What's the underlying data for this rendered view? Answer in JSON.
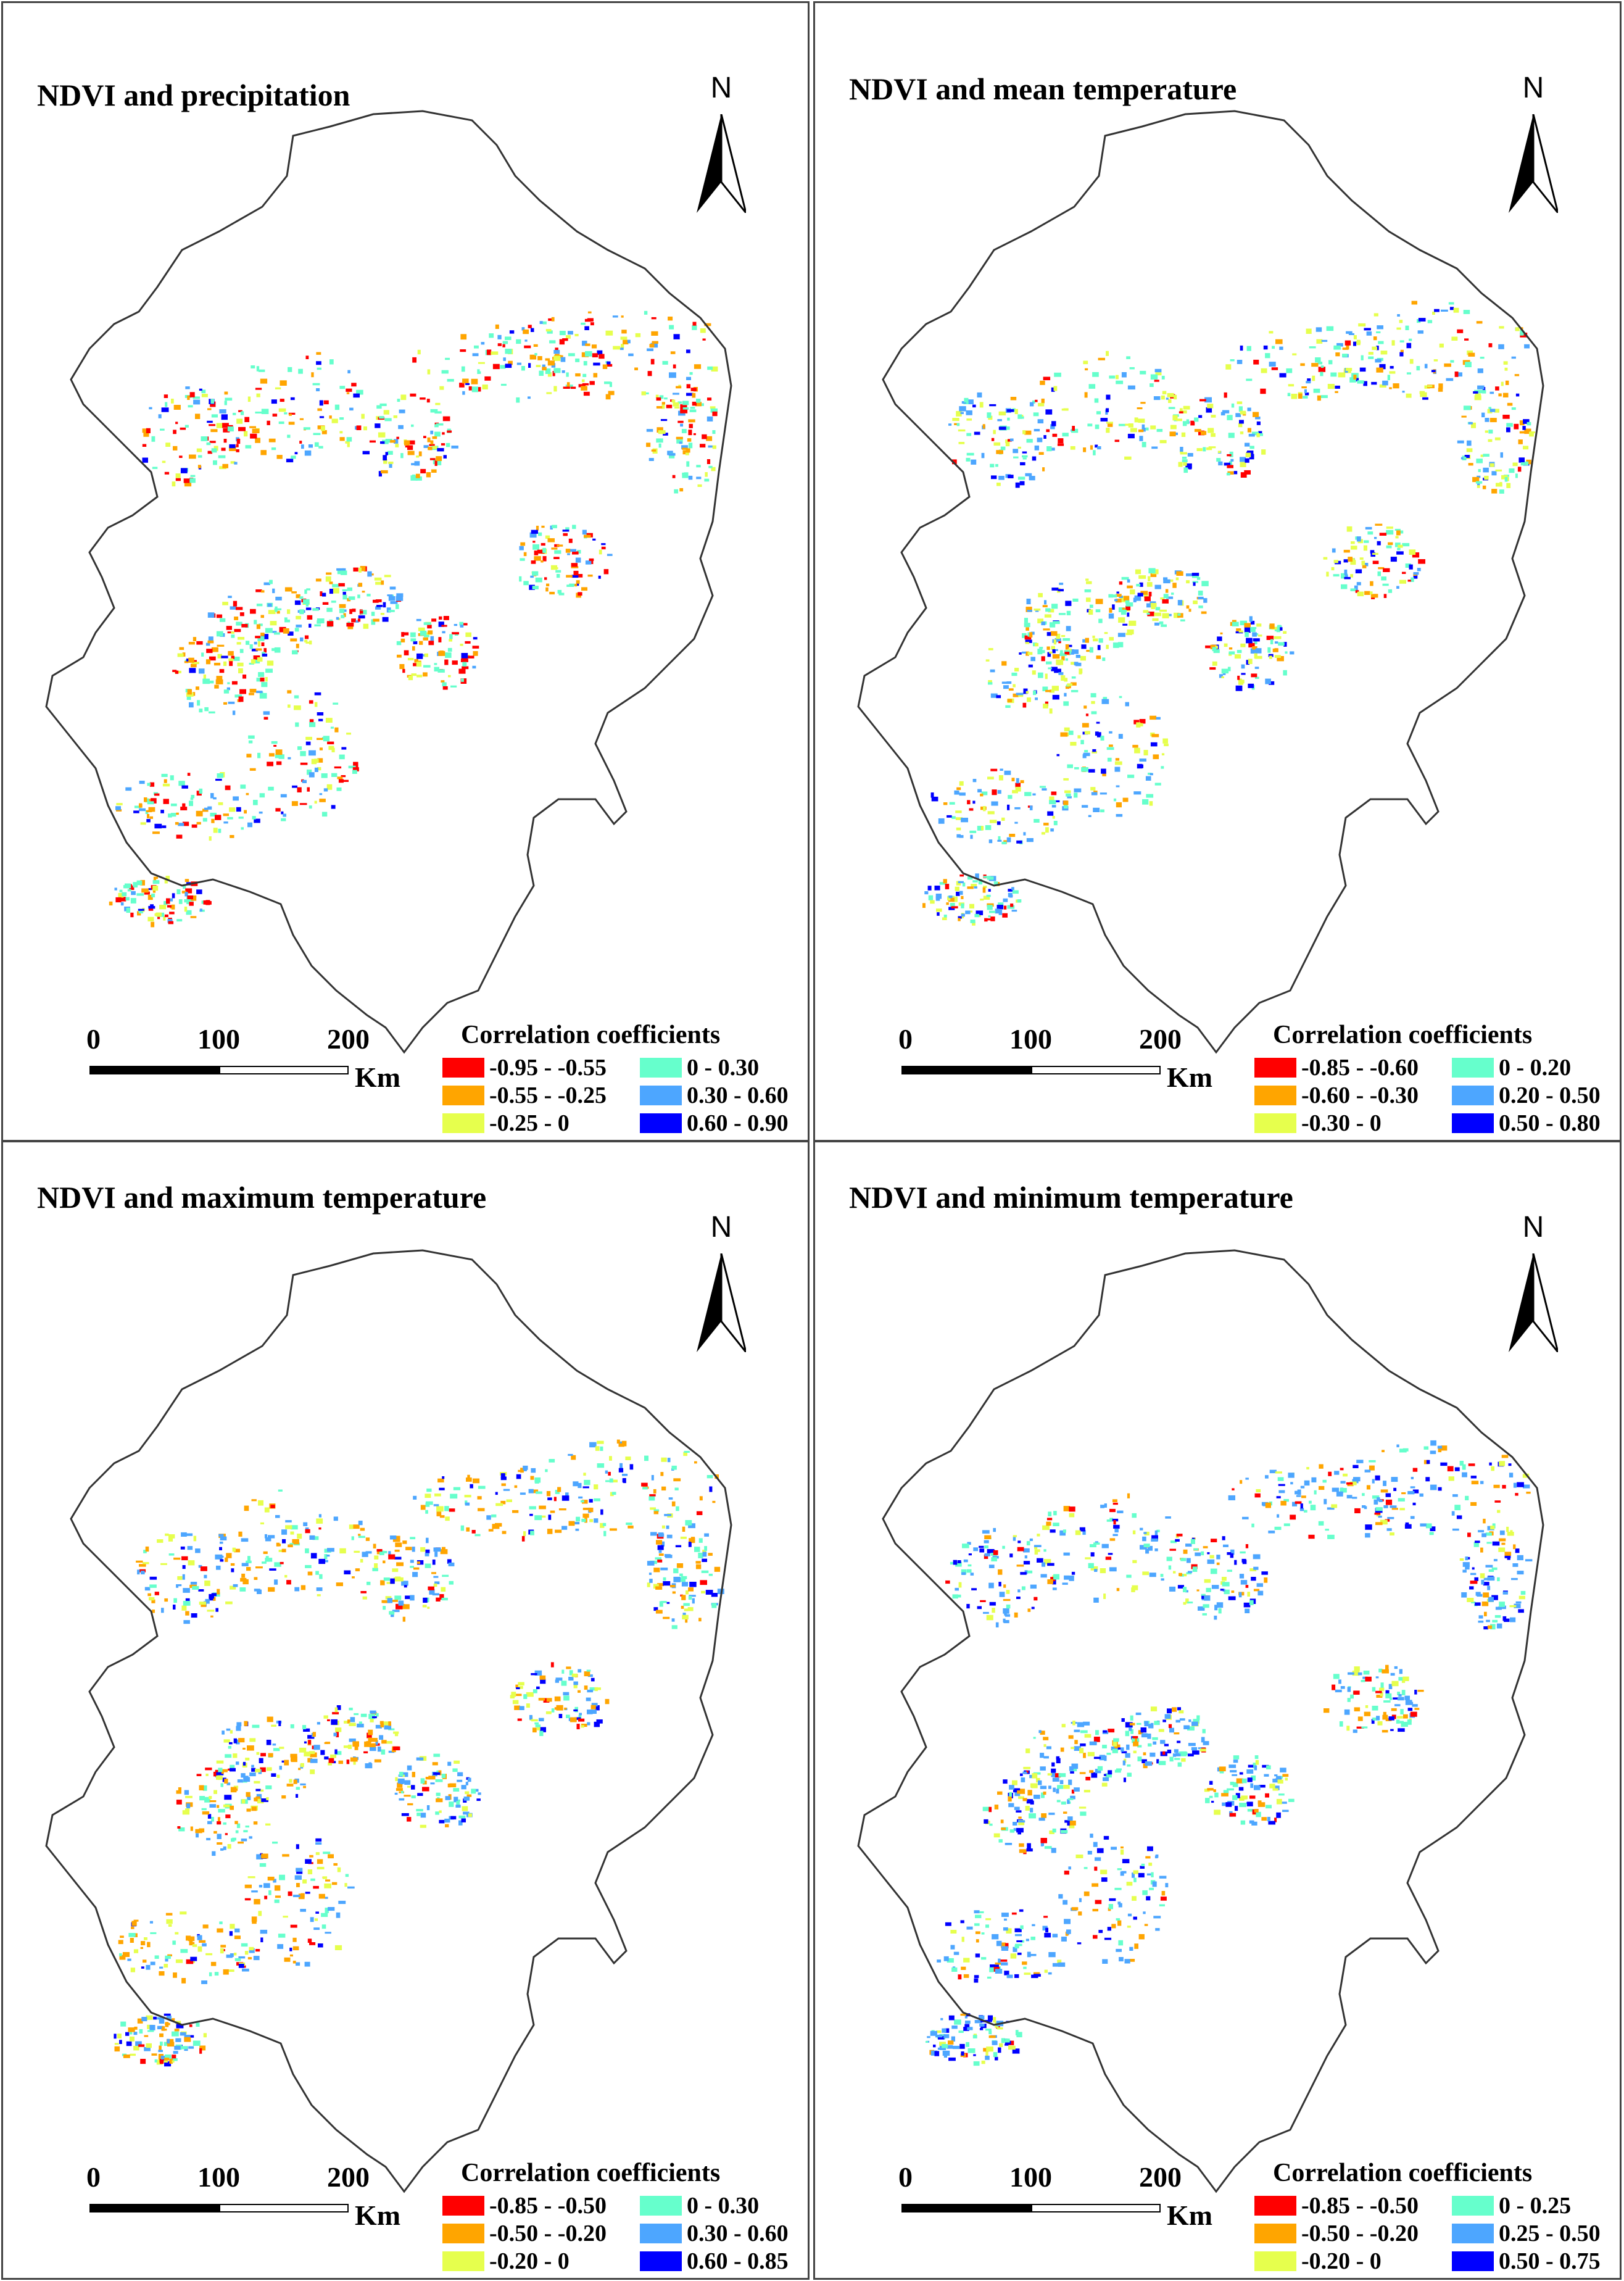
{
  "legend_title": "Correlation coefficients",
  "north_label": "N",
  "scale": {
    "ticks": [
      "0",
      "100",
      "200"
    ],
    "unit": "Km"
  },
  "colors": {
    "strong_negative": "#ff0000",
    "moderate_negative": "#ffa500",
    "weak_negative": "#e6ff4d",
    "weak_positive": "#66ffcc",
    "moderate_positive": "#4da6ff",
    "strong_positive": "#0000ff",
    "boundary": "#333333"
  },
  "panels": [
    {
      "title": "NDVI and precipitation",
      "classes": [
        "-0.95 - -0.55",
        "-0.55 - -0.25",
        "-0.25 - 0",
        "0 - 0.30",
        "0.30 - 0.60",
        "0.60 - 0.90"
      ]
    },
    {
      "title": "NDVI and mean temperature",
      "classes": [
        "-0.85 - -0.60",
        "-0.60 - -0.30",
        "-0.30 - 0",
        "0 - 0.20",
        "0.20 - 0.50",
        "0.50 - 0.80"
      ]
    },
    {
      "title": "NDVI and maximum temperature",
      "classes": [
        "-0.85 - -0.50",
        "-0.50 - -0.20",
        "-0.20 - 0",
        "0 - 0.30",
        "0.30 - 0.60",
        "0.60 - 0.85"
      ]
    },
    {
      "title": "NDVI and minimum temperature",
      "classes": [
        "-0.85 - -0.50",
        "-0.50 - -0.20",
        "-0.20 - 0",
        "0 - 0.25",
        "0.25 - 0.50",
        "0.50 - 0.75"
      ]
    }
  ]
}
